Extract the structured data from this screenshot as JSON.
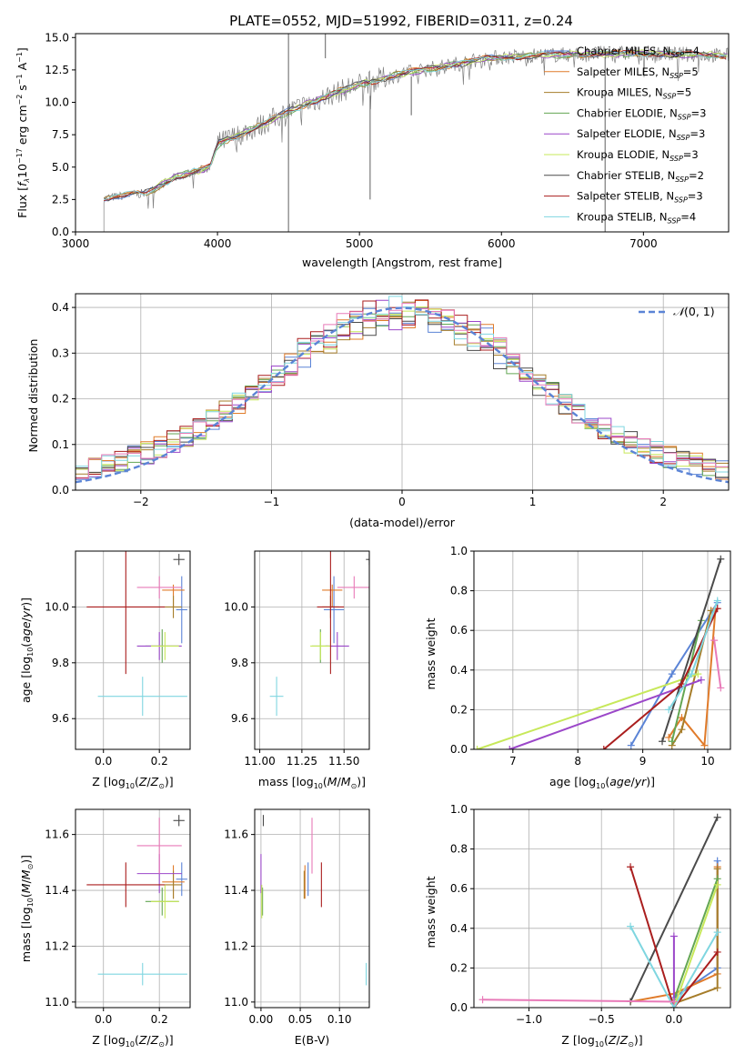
{
  "title": "PLATE=0552, MJD=51992, FIBERID=0311, z=0.24",
  "chart_data": [
    {
      "id": "spectrum",
      "type": "line",
      "xlabel": "wavelength [Angstrom, rest frame]",
      "ylabel": "Flux [f_λ 10^-17 erg cm^-2 s^-1 A^-1]",
      "xlim": [
        3000,
        7600
      ],
      "ylim": [
        0,
        15.3
      ],
      "xticks": [
        "3000",
        "4000",
        "5000",
        "6000",
        "7000"
      ],
      "yticks": [
        "0.0",
        "2.5",
        "5.0",
        "7.5",
        "10.0",
        "12.5",
        "15.0"
      ],
      "legend": [
        "Chabrier MILES, N_SSP=4",
        "Salpeter MILES, N_SSP=5",
        "Kroupa MILES, N_SSP=5",
        "Chabrier ELODIE, N_SSP=3",
        "Salpeter ELODIE, N_SSP=3",
        "Kroupa ELODIE, N_SSP=3",
        "Chabrier STELIB, N_SSP=2",
        "Salpeter STELIB, N_SSP=3",
        "Kroupa STELIB, N_SSP=4"
      ],
      "legend_position": "lower-right",
      "continuum": {
        "x": [
          3200,
          3500,
          3700,
          3950,
          4000,
          4300,
          4500,
          4800,
          5000,
          5300,
          5600,
          5900,
          6200,
          6500,
          7000,
          7600
        ],
        "y": [
          2.6,
          3.0,
          4.2,
          5.0,
          6.8,
          8.2,
          9.3,
          10.6,
          11.4,
          12.2,
          12.8,
          13.4,
          13.6,
          13.7,
          13.8,
          13.6
        ]
      },
      "spikes": [
        {
          "x": 4500,
          "y": [
            0.0,
            15.3
          ]
        },
        {
          "x": 4760,
          "y": [
            13.4,
            15.3
          ]
        },
        {
          "x": 5075,
          "y": [
            2.5,
            10.5
          ]
        },
        {
          "x": 5365,
          "y": [
            9.0,
            12.0
          ]
        },
        {
          "x": 6730,
          "y": [
            0.0,
            13.5
          ]
        }
      ]
    },
    {
      "id": "residuals",
      "type": "histogram",
      "xlabel": "(data-model)/error",
      "ylabel": "Normed distribution",
      "xlim": [
        -2.5,
        2.5
      ],
      "ylim": [
        0,
        0.43
      ],
      "xticks": [
        "−2",
        "−1",
        "0",
        "1",
        "2"
      ],
      "yticks": [
        "0.0",
        "0.1",
        "0.2",
        "0.3",
        "0.4"
      ],
      "bin_width": 0.1,
      "legend": [
        "N(0,1)"
      ],
      "legend_position": "upper-right",
      "grid": true
    },
    {
      "id": "age-vs-Z",
      "type": "errorbar",
      "xlabel": "Z [log10(Z/Z⊙)]",
      "ylabel": "age  [log10(age/yr)]",
      "xlim": [
        -0.1,
        0.31
      ],
      "ylim": [
        9.49,
        10.2
      ],
      "xticks": [
        "0.0",
        "0.2"
      ],
      "yticks": [
        "9.6",
        "9.8",
        "10.0"
      ],
      "grid": true
    },
    {
      "id": "age-vs-mass",
      "type": "errorbar",
      "xlabel": "mass [log10(M/M⊙)]",
      "ylabel": "",
      "xlim": [
        10.97,
        11.65
      ],
      "ylim": [
        9.49,
        10.2
      ],
      "xticks": [
        "11.00",
        "11.25",
        "11.50"
      ],
      "yticks": [
        "9.6",
        "9.8",
        "10.0"
      ],
      "grid": true
    },
    {
      "id": "massweight-vs-age",
      "type": "line",
      "xlabel": "age  [log10(age/yr)]",
      "ylabel": "mass weight",
      "xlim": [
        6.4,
        10.35
      ],
      "ylim": [
        0,
        1
      ],
      "xticks": [
        "7",
        "8",
        "9",
        "10"
      ],
      "yticks": [
        "0.0",
        "0.2",
        "0.4",
        "0.6",
        "0.8",
        "1.0"
      ],
      "grid": true
    },
    {
      "id": "mass-vs-Z",
      "type": "errorbar",
      "xlabel": "Z [log10(Z/Z⊙)]",
      "ylabel": "mass [log10(M/M⊙)]",
      "xlim": [
        -0.1,
        0.31
      ],
      "ylim": [
        10.98,
        11.69
      ],
      "xticks": [
        "0.0",
        "0.2"
      ],
      "yticks": [
        "11.0",
        "11.2",
        "11.4",
        "11.6"
      ],
      "grid": true
    },
    {
      "id": "mass-vs-EBV",
      "type": "errorbar",
      "xlabel": "E(B-V)",
      "ylabel": "",
      "xlim": [
        -0.008,
        0.138
      ],
      "ylim": [
        10.98,
        11.69
      ],
      "xticks": [
        "0.00",
        "0.05",
        "0.10"
      ],
      "yticks": [
        "11.0",
        "11.2",
        "11.4",
        "11.6"
      ],
      "grid": true
    },
    {
      "id": "massweight-vs-Z",
      "type": "line",
      "xlabel": "Z [log10(Z/Z⊙)]",
      "ylabel": "mass weight",
      "xlim": [
        -1.38,
        0.39
      ],
      "ylim": [
        0,
        1
      ],
      "xticks": [
        "−1.0",
        "−0.5",
        "0.0"
      ],
      "yticks": [
        "0.0",
        "0.2",
        "0.4",
        "0.6",
        "0.8",
        "1.0"
      ],
      "grid": true
    }
  ],
  "series": [
    {
      "name": "Chabrier MILES",
      "nssp": "4",
      "color": "#5b84d6",
      "age": 9.99,
      "age_err": [
        0.12,
        0.12
      ],
      "Z": 0.28,
      "Z_err": [
        0.02,
        0.02
      ],
      "mass": 11.44,
      "mass_err": [
        0.06,
        0.06
      ],
      "ebv": 0.06,
      "weights": [
        [
          8.82,
          0.02,
          0.0,
          0.05
        ],
        [
          9.45,
          0.38,
          0.3,
          0.2
        ],
        [
          10.15,
          0.74,
          0.3,
          0.74
        ]
      ]
    },
    {
      "name": "Salpeter MILES",
      "nssp": "5",
      "color": "#e07b2a",
      "age": 10.06,
      "age_err": [
        0.06,
        0.02
      ],
      "Z": 0.25,
      "Z_err": [
        0.04,
        0.04
      ],
      "mass": 11.43,
      "mass_err": [
        0.06,
        0.06
      ],
      "ebv": 0.056,
      "weights": [
        [
          9.4,
          0.06,
          -0.3,
          0.03
        ],
        [
          9.6,
          0.16,
          0.0,
          0.07
        ],
        [
          9.95,
          0.02,
          0.3,
          0.17
        ],
        [
          10.12,
          0.71,
          0.3,
          0.71
        ]
      ]
    },
    {
      "name": "Kroupa MILES",
      "nssp": "5",
      "color": "#a67d2a",
      "age": 10.0,
      "age_err": [
        0.04,
        0.04
      ],
      "Z": 0.25,
      "Z_err": [
        0.03,
        0.03
      ],
      "mass": 11.42,
      "mass_err": [
        0.05,
        0.05
      ],
      "ebv": 0.055,
      "weights": [
        [
          9.45,
          0.02,
          0.0,
          0.02
        ],
        [
          9.6,
          0.1,
          0.3,
          0.1
        ],
        [
          10.05,
          0.7,
          0.3,
          0.7
        ]
      ]
    },
    {
      "name": "Chabrier ELODIE",
      "nssp": "3",
      "color": "#63a653",
      "age": 9.86,
      "age_err": [
        0.06,
        0.06
      ],
      "Z": 0.21,
      "Z_err": [
        0.06,
        0.06
      ],
      "mass": 11.36,
      "mass_err": [
        0.05,
        0.05
      ],
      "ebv": 0.002,
      "weights": [
        [
          9.45,
          0.04,
          0.0,
          0.04
        ],
        [
          9.9,
          0.65,
          0.3,
          0.65
        ]
      ]
    },
    {
      "name": "Salpeter ELODIE",
      "nssp": "3",
      "color": "#9b47c9",
      "age": 9.86,
      "age_err": [
        0.05,
        0.05
      ],
      "Z": 0.2,
      "Z_err": [
        0.08,
        0.08
      ],
      "mass": 11.46,
      "mass_err": [
        0.07,
        0.07
      ],
      "ebv": 0.0,
      "weights": [
        [
          6.95,
          0.0,
          0.0,
          0.0
        ],
        [
          9.9,
          0.35,
          0.0,
          0.36
        ]
      ]
    },
    {
      "name": "Kroupa ELODIE",
      "nssp": "3",
      "color": "#c7e85a",
      "age": 9.86,
      "age_err": [
        0.05,
        0.05
      ],
      "Z": 0.22,
      "Z_err": [
        0.05,
        0.05
      ],
      "mass": 11.36,
      "mass_err": [
        0.06,
        0.06
      ],
      "ebv": 0.001,
      "weights": [
        [
          6.45,
          0.0,
          0.0,
          0.0
        ],
        [
          9.85,
          0.38,
          0.3,
          0.62
        ]
      ]
    },
    {
      "name": "Chabrier STELIB",
      "nssp": "2",
      "color": "#4a4a4a",
      "age": 10.17,
      "age_err": [
        0.02,
        0.02
      ],
      "Z": 0.27,
      "Z_err": [
        0.02,
        0.02
      ],
      "mass": 11.65,
      "mass_err": [
        0.02,
        0.02
      ],
      "ebv": 0.003,
      "weights": [
        [
          9.3,
          0.04,
          -0.3,
          0.03
        ],
        [
          10.2,
          0.96,
          0.3,
          0.96
        ]
      ]
    },
    {
      "name": "Salpeter STELIB",
      "nssp": "3",
      "color": "#aa1e1e",
      "age": 10.0,
      "age_err": [
        0.24,
        0.24
      ],
      "Z": 0.08,
      "Z_err": [
        0.14,
        0.14
      ],
      "mass": 11.42,
      "mass_err": [
        0.08,
        0.08
      ],
      "ebv": 0.077,
      "weights": [
        [
          8.4,
          0.0,
          -0.3,
          0.71
        ],
        [
          9.6,
          0.33,
          0.0,
          0.0
        ],
        [
          10.15,
          0.71,
          0.3,
          0.28
        ]
      ]
    },
    {
      "name": "Kroupa STELIB",
      "nssp": "4",
      "color": "#7fd6e0",
      "age": 9.68,
      "age_err": [
        0.07,
        0.07
      ],
      "Z": 0.14,
      "Z_err": [
        0.16,
        0.16
      ],
      "mass": 11.1,
      "mass_err": [
        0.04,
        0.04
      ],
      "ebv": 0.134,
      "weights": [
        [
          9.4,
          0.2,
          -0.3,
          0.41
        ],
        [
          9.75,
          0.38,
          0.0,
          0.0
        ],
        [
          10.15,
          0.75,
          0.3,
          0.38
        ]
      ]
    }
  ],
  "extra_pink": {
    "name": "pink",
    "color": "#e87ab8",
    "age": 10.07,
    "age_err": [
      0.04,
      0.04
    ],
    "Z": 0.2,
    "Z_err": [
      0.08,
      0.08
    ],
    "mass": 11.56,
    "mass_err": [
      0.1,
      0.1
    ],
    "ebv": 0.065,
    "weights": [
      [
        10.1,
        0.55,
        -1.32,
        0.04
      ],
      [
        10.2,
        0.31,
        0.0,
        0.03
      ]
    ]
  },
  "normal_color": "#5b84d6"
}
